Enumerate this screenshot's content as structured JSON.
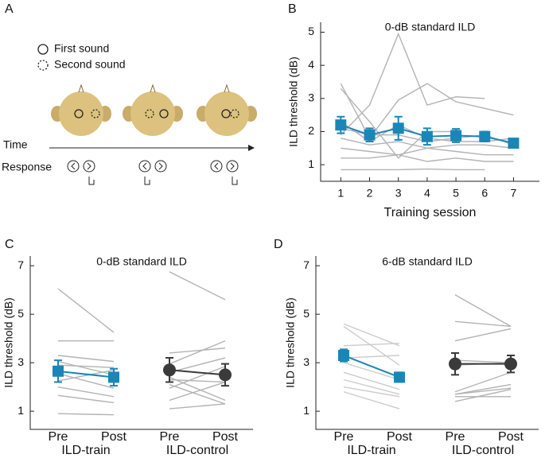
{
  "panel_labels": [
    "A",
    "B",
    "C",
    "D"
  ],
  "diagram": {
    "legend": [
      "First sound",
      "Second sound"
    ],
    "time_label": "Time",
    "response_label": "Response"
  },
  "chart_data": [
    {
      "type": "line",
      "title": "0-dB standard ILD",
      "xlabel": "Training session",
      "ylabel": "ILD threshold (dB)",
      "x": [
        1,
        2,
        3,
        4,
        5,
        6,
        7
      ],
      "xlim": [
        0.3,
        7.9
      ],
      "xticks": [
        1,
        2,
        3,
        4,
        5,
        6,
        7
      ],
      "ylim": [
        0.5,
        5.3
      ],
      "yticks": [
        1,
        2,
        3,
        4,
        5
      ],
      "series": [
        {
          "color": "#b3b3b3",
          "values": [
            1.9,
            2.8,
            4.95,
            2.8,
            3.05,
            3.0,
            null
          ]
        },
        {
          "color": "#b3b3b3",
          "values": [
            3.45,
            1.8,
            2.95,
            3.45,
            2.9,
            2.7,
            2.5
          ]
        },
        {
          "color": "#b3b3b3",
          "values": [
            3.3,
            2.3,
            1.2,
            2.0,
            2.0,
            null,
            null
          ]
        },
        {
          "color": "#b3b3b3",
          "values": [
            2.3,
            1.7,
            2.2,
            1.8,
            1.7,
            1.7,
            1.8
          ]
        },
        {
          "color": "#b3b3b3",
          "values": [
            2.1,
            1.9,
            1.9,
            1.7,
            1.8,
            1.9,
            1.6
          ]
        },
        {
          "color": "#b3b3b3",
          "values": [
            1.8,
            1.6,
            1.7,
            1.5,
            1.6,
            1.6,
            1.5
          ]
        },
        {
          "color": "#b3b3b3",
          "values": [
            1.5,
            1.4,
            1.3,
            1.5,
            1.4,
            1.3,
            1.3
          ]
        },
        {
          "color": "#b3b3b3",
          "values": [
            1.2,
            1.2,
            1.3,
            1.1,
            1.2,
            1.1,
            1.1
          ]
        },
        {
          "color": "#b3b3b3",
          "values": [
            0.85,
            0.85,
            0.85,
            0.87,
            0.85,
            0.85,
            null
          ]
        },
        {
          "color": "#1a86b8",
          "marker": "square",
          "values": [
            2.2,
            1.9,
            2.1,
            1.85,
            1.88,
            1.85,
            1.65
          ],
          "errors": [
            0.25,
            0.2,
            0.35,
            0.25,
            0.2,
            0.15,
            0.05
          ]
        }
      ]
    },
    {
      "type": "line",
      "title": "0-dB standard ILD",
      "ylabel": "ILD threshold (dB)",
      "categories": [
        "Pre",
        "Post",
        "Pre",
        "Post"
      ],
      "group_labels": [
        "ILD-train",
        "ILD-control"
      ],
      "ylim": [
        0.25,
        7.4
      ],
      "yticks": [
        1,
        3,
        5,
        7
      ],
      "series": [
        {
          "color": "#b3b3b3",
          "values": [
            6.05,
            4.25,
            null,
            null
          ]
        },
        {
          "color": "#b3b3b3",
          "values": [
            3.9,
            3.9,
            null,
            null
          ]
        },
        {
          "color": "#b3b3b3",
          "values": [
            3.3,
            3.05,
            null,
            null
          ]
        },
        {
          "color": "#b3b3b3",
          "values": [
            3.05,
            2.5,
            null,
            null
          ]
        },
        {
          "color": "#b3b3b3",
          "values": [
            2.9,
            2.8,
            null,
            null
          ]
        },
        {
          "color": "#b3b3b3",
          "values": [
            2.55,
            1.95,
            null,
            null
          ]
        },
        {
          "color": "#b3b3b3",
          "values": [
            2.25,
            2.7,
            null,
            null
          ]
        },
        {
          "color": "#b3b3b3",
          "values": [
            2.0,
            1.6,
            null,
            null
          ]
        },
        {
          "color": "#b3b3b3",
          "values": [
            1.65,
            1.35,
            null,
            null
          ]
        },
        {
          "color": "#b3b3b3",
          "values": [
            0.9,
            0.85,
            null,
            null
          ]
        },
        {
          "color": "#b3b3b3",
          "values": [
            null,
            null,
            6.75,
            5.6
          ]
        },
        {
          "color": "#b3b3b3",
          "values": [
            null,
            null,
            3.4,
            3.6
          ]
        },
        {
          "color": "#b3b3b3",
          "values": [
            null,
            null,
            2.95,
            3.9
          ]
        },
        {
          "color": "#b3b3b3",
          "values": [
            null,
            null,
            2.6,
            3.2
          ]
        },
        {
          "color": "#b3b3b3",
          "values": [
            null,
            null,
            2.4,
            1.45
          ]
        },
        {
          "color": "#b3b3b3",
          "values": [
            null,
            null,
            2.1,
            1.3
          ]
        },
        {
          "color": "#b3b3b3",
          "values": [
            null,
            null,
            1.95,
            2.85
          ]
        },
        {
          "color": "#b3b3b3",
          "values": [
            null,
            null,
            1.45,
            2.2
          ]
        },
        {
          "color": "#b3b3b3",
          "values": [
            null,
            null,
            1.1,
            1.3
          ]
        },
        {
          "color": "#b3b3b3",
          "values": [
            null,
            null,
            2.3,
            2.2
          ]
        },
        {
          "color": "#1a86b8",
          "marker": "square",
          "values": [
            2.65,
            2.4,
            null,
            null
          ],
          "errors": [
            0.45,
            0.35,
            null,
            null
          ]
        },
        {
          "color": "#3a3a3a",
          "marker": "circle",
          "values": [
            null,
            null,
            2.7,
            2.5
          ],
          "errors": [
            null,
            null,
            0.5,
            0.45
          ]
        }
      ]
    },
    {
      "type": "line",
      "title": "6-dB standard ILD",
      "ylabel": "ILD threshold (dB)",
      "categories": [
        "Pre",
        "Post",
        "Pre",
        "Post"
      ],
      "group_labels": [
        "ILD-train",
        "ILD-control"
      ],
      "ylim": [
        0.25,
        7.4
      ],
      "yticks": [
        1,
        3,
        5,
        7
      ],
      "series": [
        {
          "color": "#cccccc",
          "values": [
            4.6,
            3.7,
            null,
            null
          ]
        },
        {
          "color": "#cccccc",
          "values": [
            4.5,
            2.9,
            null,
            null
          ]
        },
        {
          "color": "#cccccc",
          "values": [
            3.7,
            3.8,
            null,
            null
          ]
        },
        {
          "color": "#cccccc",
          "values": [
            3.2,
            3.3,
            null,
            null
          ]
        },
        {
          "color": "#cccccc",
          "values": [
            3.0,
            2.3,
            null,
            null
          ]
        },
        {
          "color": "#cccccc",
          "values": [
            2.6,
            1.9,
            null,
            null
          ]
        },
        {
          "color": "#cccccc",
          "values": [
            2.3,
            1.7,
            null,
            null
          ]
        },
        {
          "color": "#cccccc",
          "values": [
            2.0,
            1.6,
            null,
            null
          ]
        },
        {
          "color": "#cccccc",
          "values": [
            1.8,
            1.1,
            null,
            null
          ]
        },
        {
          "color": "#b3b3b3",
          "values": [
            null,
            null,
            5.8,
            4.5
          ]
        },
        {
          "color": "#b3b3b3",
          "values": [
            null,
            null,
            4.7,
            4.5
          ]
        },
        {
          "color": "#b3b3b3",
          "values": [
            null,
            null,
            3.9,
            4.4
          ]
        },
        {
          "color": "#b3b3b3",
          "values": [
            null,
            null,
            3.1,
            3.0
          ]
        },
        {
          "color": "#b3b3b3",
          "values": [
            null,
            null,
            2.9,
            3.0
          ]
        },
        {
          "color": "#b3b3b3",
          "values": [
            null,
            null,
            1.8,
            2.6
          ]
        },
        {
          "color": "#b3b3b3",
          "values": [
            null,
            null,
            1.7,
            2.1
          ]
        },
        {
          "color": "#b3b3b3",
          "values": [
            null,
            null,
            1.6,
            1.6
          ]
        },
        {
          "color": "#b3b3b3",
          "values": [
            null,
            null,
            1.7,
            1.95
          ]
        },
        {
          "color": "#b3b3b3",
          "values": [
            null,
            null,
            1.4,
            1.9
          ]
        },
        {
          "color": "#1a86b8",
          "marker": "square",
          "values": [
            3.3,
            2.4,
            null,
            null
          ],
          "errors": [
            0.25,
            0.2,
            null,
            null
          ]
        },
        {
          "color": "#3a3a3a",
          "marker": "circle",
          "values": [
            null,
            null,
            2.95,
            2.95
          ],
          "errors": [
            null,
            null,
            0.45,
            0.35
          ]
        }
      ]
    }
  ]
}
